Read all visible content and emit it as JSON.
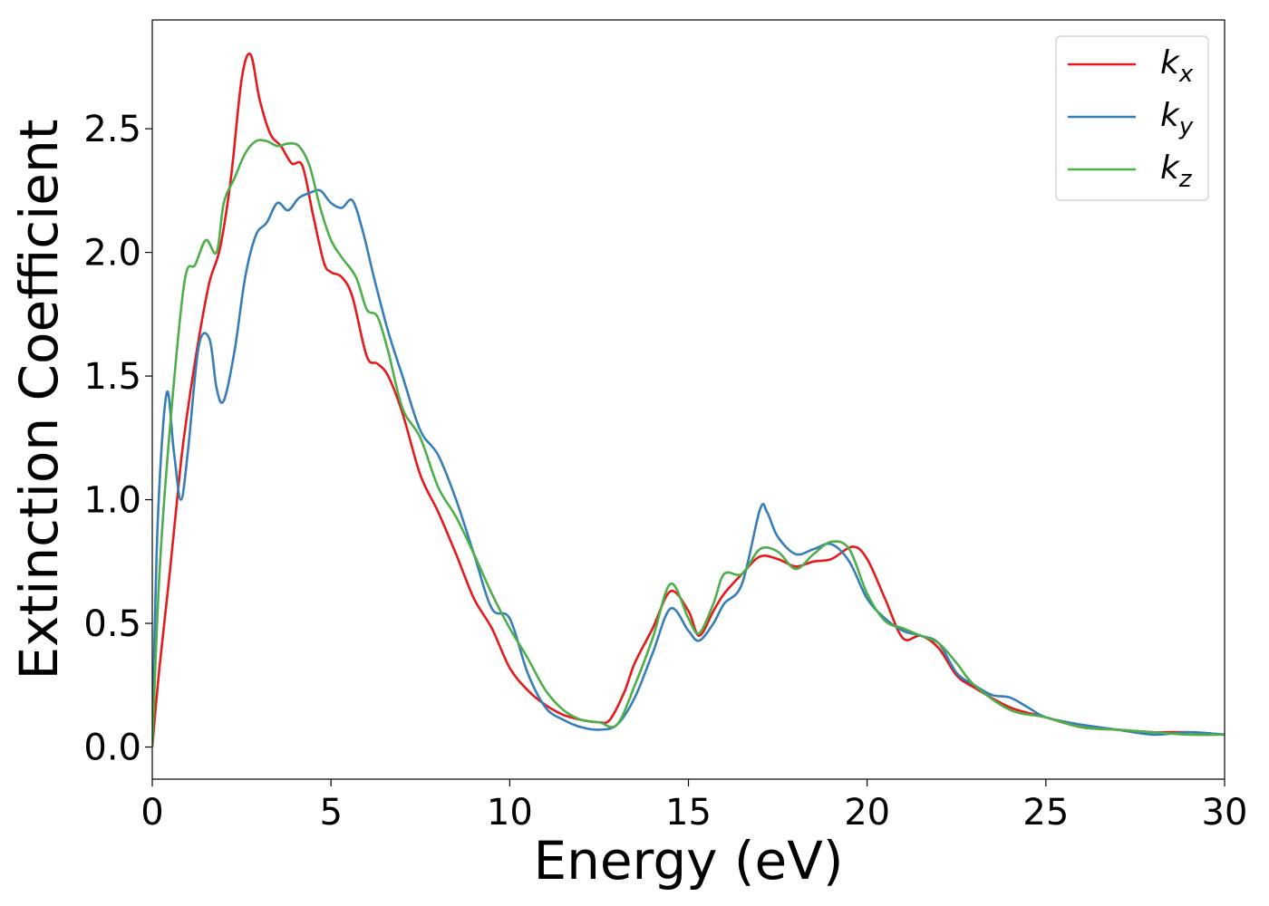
{
  "chart_data": {
    "type": "line",
    "title": "",
    "xlabel": "Energy (eV)",
    "ylabel": "Extinction Coefficient",
    "xlim": [
      0,
      30
    ],
    "ylim": [
      -0.13,
      2.94
    ],
    "xticks": [
      0,
      5,
      10,
      15,
      20,
      25,
      30
    ],
    "yticks": [
      0.0,
      0.5,
      1.0,
      1.5,
      2.0,
      2.5
    ],
    "xtick_labels": [
      "0",
      "5",
      "10",
      "15",
      "20",
      "25",
      "30"
    ],
    "ytick_labels": [
      "0.0",
      "0.5",
      "1.0",
      "1.5",
      "2.0",
      "2.5"
    ],
    "grid": false,
    "legend_position": "top-right",
    "series": [
      {
        "name": "k_x",
        "label_main": "k",
        "label_sub": "x",
        "color": "#e41a1c",
        "x": [
          0,
          0.2,
          0.5,
          0.8,
          1.0,
          1.3,
          1.6,
          1.9,
          2.2,
          2.5,
          2.75,
          3.0,
          3.3,
          3.6,
          3.9,
          4.2,
          4.5,
          4.8,
          5.0,
          5.3,
          5.6,
          6.0,
          6.3,
          6.6,
          7.0,
          7.5,
          8.0,
          8.5,
          9.0,
          9.5,
          10.0,
          10.5,
          11.0,
          11.5,
          12.0,
          12.5,
          12.8,
          13.2,
          13.5,
          14.0,
          14.5,
          15.0,
          15.3,
          15.7,
          16.0,
          16.5,
          17.0,
          17.5,
          18.0,
          18.5,
          19.0,
          19.6,
          20.0,
          20.5,
          21.0,
          21.5,
          22.0,
          22.5,
          23.0,
          24.0,
          25.0,
          26.0,
          27.0,
          28.0,
          29.0,
          30.0
        ],
        "y": [
          0.0,
          0.32,
          0.72,
          1.15,
          1.37,
          1.65,
          1.88,
          2.02,
          2.3,
          2.7,
          2.8,
          2.62,
          2.48,
          2.43,
          2.36,
          2.35,
          2.15,
          1.96,
          1.92,
          1.9,
          1.82,
          1.58,
          1.55,
          1.5,
          1.35,
          1.1,
          0.95,
          0.78,
          0.6,
          0.48,
          0.32,
          0.23,
          0.17,
          0.13,
          0.11,
          0.1,
          0.11,
          0.22,
          0.34,
          0.48,
          0.63,
          0.55,
          0.45,
          0.55,
          0.62,
          0.7,
          0.77,
          0.76,
          0.73,
          0.75,
          0.76,
          0.81,
          0.76,
          0.6,
          0.44,
          0.45,
          0.4,
          0.29,
          0.24,
          0.16,
          0.12,
          0.08,
          0.07,
          0.06,
          0.06,
          0.05
        ]
      },
      {
        "name": "k_y",
        "label_main": "k",
        "label_sub": "y",
        "color": "#377eb8",
        "x": [
          0,
          0.15,
          0.4,
          0.6,
          0.8,
          1.0,
          1.3,
          1.6,
          1.8,
          2.0,
          2.3,
          2.6,
          2.9,
          3.2,
          3.5,
          3.8,
          4.1,
          4.4,
          4.7,
          5.0,
          5.3,
          5.6,
          5.9,
          6.2,
          6.6,
          7.0,
          7.5,
          8.0,
          8.5,
          9.0,
          9.5,
          10.0,
          10.5,
          11.0,
          11.5,
          12.0,
          12.5,
          13.0,
          13.5,
          14.0,
          14.5,
          15.0,
          15.3,
          15.7,
          16.0,
          16.5,
          17.0,
          17.2,
          17.5,
          18.0,
          18.5,
          19.0,
          19.5,
          20.0,
          20.5,
          21.0,
          21.5,
          22.0,
          22.5,
          23.0,
          23.5,
          24.0,
          24.5,
          25.0,
          26.0,
          27.0,
          28.0,
          29.0,
          30.0
        ],
        "y": [
          0.0,
          0.9,
          1.43,
          1.2,
          1.0,
          1.2,
          1.62,
          1.65,
          1.45,
          1.4,
          1.6,
          1.9,
          2.07,
          2.12,
          2.2,
          2.17,
          2.22,
          2.24,
          2.25,
          2.2,
          2.18,
          2.21,
          2.08,
          1.9,
          1.68,
          1.5,
          1.28,
          1.18,
          1.0,
          0.78,
          0.56,
          0.52,
          0.3,
          0.16,
          0.11,
          0.08,
          0.07,
          0.09,
          0.2,
          0.38,
          0.56,
          0.47,
          0.43,
          0.5,
          0.58,
          0.66,
          0.96,
          0.95,
          0.85,
          0.78,
          0.8,
          0.82,
          0.75,
          0.6,
          0.52,
          0.47,
          0.45,
          0.42,
          0.3,
          0.25,
          0.21,
          0.2,
          0.16,
          0.12,
          0.09,
          0.07,
          0.05,
          0.06,
          0.05
        ]
      },
      {
        "name": "k_z",
        "label_main": "k",
        "label_sub": "z",
        "color": "#4daf4a",
        "x": [
          0,
          0.2,
          0.5,
          0.9,
          1.2,
          1.5,
          1.8,
          2.0,
          2.3,
          2.6,
          2.9,
          3.2,
          3.5,
          3.8,
          4.1,
          4.4,
          4.7,
          5.0,
          5.3,
          5.7,
          6.0,
          6.3,
          6.6,
          7.0,
          7.5,
          8.0,
          8.5,
          9.0,
          9.5,
          10.0,
          10.5,
          11.0,
          11.5,
          12.0,
          12.5,
          13.0,
          13.5,
          14.0,
          14.5,
          15.0,
          15.3,
          15.7,
          16.0,
          16.5,
          17.0,
          17.5,
          18.0,
          18.5,
          19.0,
          19.5,
          20.0,
          20.5,
          21.0,
          21.5,
          22.0,
          22.5,
          23.0,
          24.0,
          25.0,
          26.0,
          27.0,
          28.0,
          29.0,
          30.0
        ],
        "y": [
          0.0,
          0.7,
          1.3,
          1.88,
          1.95,
          2.05,
          2.0,
          2.2,
          2.3,
          2.4,
          2.45,
          2.45,
          2.43,
          2.44,
          2.43,
          2.35,
          2.18,
          2.05,
          1.98,
          1.9,
          1.77,
          1.74,
          1.6,
          1.37,
          1.25,
          1.05,
          0.93,
          0.78,
          0.62,
          0.48,
          0.36,
          0.23,
          0.15,
          0.11,
          0.1,
          0.09,
          0.25,
          0.44,
          0.66,
          0.52,
          0.46,
          0.58,
          0.7,
          0.7,
          0.8,
          0.79,
          0.72,
          0.78,
          0.83,
          0.8,
          0.62,
          0.51,
          0.48,
          0.45,
          0.42,
          0.34,
          0.25,
          0.15,
          0.12,
          0.08,
          0.07,
          0.06,
          0.05,
          0.05
        ]
      }
    ]
  }
}
